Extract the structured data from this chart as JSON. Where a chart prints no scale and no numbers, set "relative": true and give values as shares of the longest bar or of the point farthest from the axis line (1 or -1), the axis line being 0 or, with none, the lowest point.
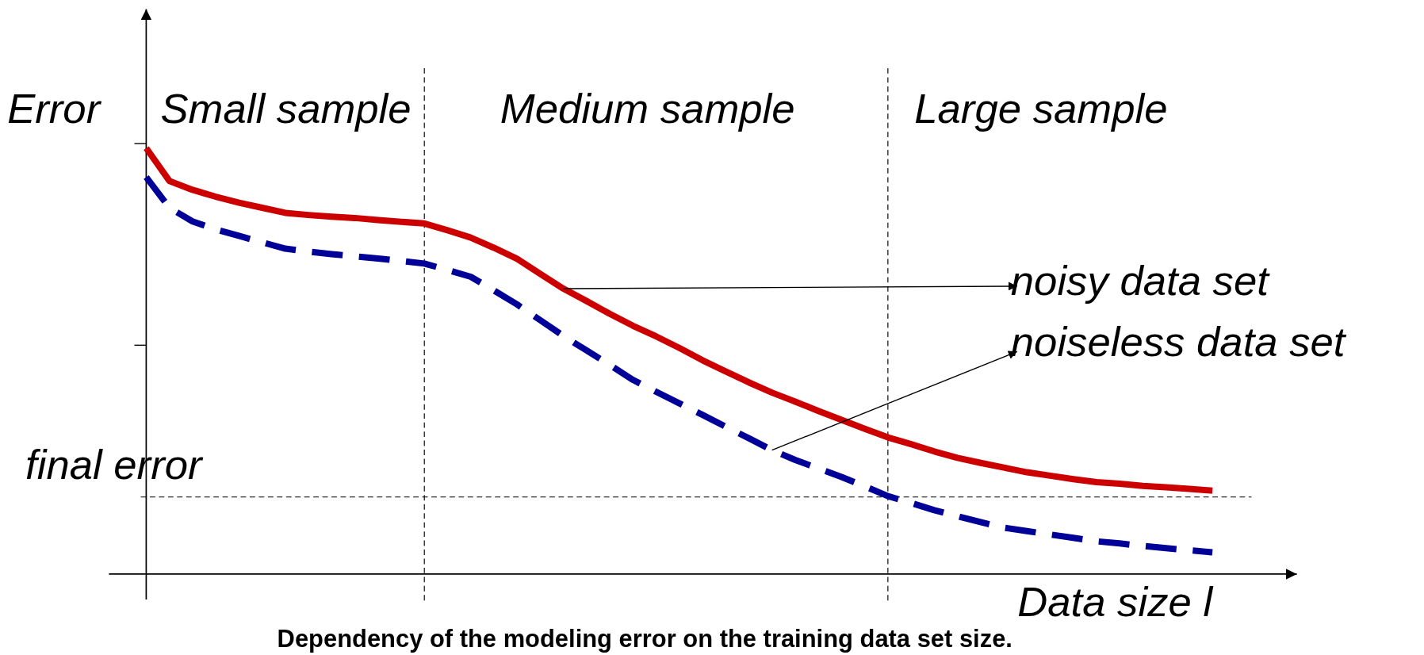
{
  "chart_data": {
    "type": "line",
    "title": "Dependency of the modeling error on the training data set size.",
    "ylabel": "Error",
    "xlabel": "Data size  l",
    "relative": true,
    "categories": [
      null,
      null,
      null,
      null,
      null,
      null,
      null,
      null,
      null,
      null,
      null,
      null,
      null,
      null,
      null,
      null,
      null,
      null,
      null,
      null,
      null,
      null,
      null,
      null,
      null,
      null,
      null,
      null,
      null,
      null,
      null,
      null,
      null,
      null,
      null,
      null,
      null,
      null,
      null,
      null,
      null,
      null,
      null,
      null,
      null,
      null,
      null
    ],
    "series": [
      {
        "color": "#cc0000",
        "line_style": "solid",
        "values": [
          1,
          0.923,
          0.902,
          0.886,
          0.872,
          0.86,
          0.848,
          0.843,
          0.839,
          0.836,
          0.831,
          0.827,
          0.823,
          0.807,
          0.79,
          0.766,
          0.74,
          0.705,
          0.67,
          0.641,
          0.611,
          0.583,
          0.558,
          0.531,
          0.502,
          0.476,
          0.45,
          0.426,
          0.405,
          0.383,
          0.362,
          0.341,
          0.321,
          0.305,
          0.288,
          0.273,
          0.261,
          0.25,
          0.239,
          0.231,
          0.223,
          0.216,
          0.212,
          0.207,
          0.204,
          0.2,
          0.196
        ]
      },
      {
        "color": "#000099",
        "line_style": "dashed",
        "values": [
          0.932,
          0.86,
          0.828,
          0.809,
          0.794,
          0.779,
          0.764,
          0.757,
          0.751,
          0.746,
          0.741,
          0.735,
          0.729,
          0.714,
          0.698,
          0.666,
          0.633,
          0.596,
          0.559,
          0.525,
          0.491,
          0.456,
          0.428,
          0.401,
          0.374,
          0.346,
          0.319,
          0.291,
          0.268,
          0.248,
          0.228,
          0.206,
          0.183,
          0.167,
          0.15,
          0.136,
          0.122,
          0.109,
          0.101,
          0.093,
          0.085,
          0.077,
          0.072,
          0.066,
          0.061,
          0.056,
          0.051
        ]
      }
    ],
    "ref_lines": [
      {
        "axis": "y",
        "value": 0.181,
        "label": "final error",
        "line_style": "dashed"
      }
    ],
    "annotations": [
      "Small sample",
      "Medium sample",
      "Large sample",
      "noisy data set",
      "noiseless data set"
    ]
  }
}
